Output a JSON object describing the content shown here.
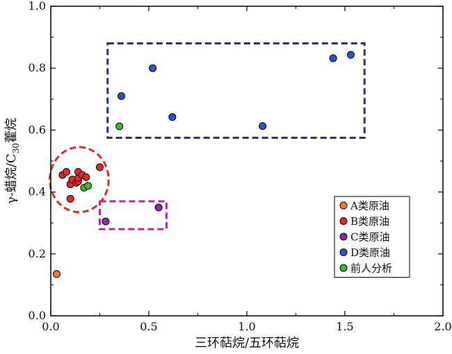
{
  "chart_data": {
    "type": "scatter",
    "xlabel": "三环萜烷/五环萜烷",
    "ylabel_main": "γ-蜡烷/C",
    "ylabel_sub": "30",
    "ylabel_end": "藿烷",
    "xlim": [
      0.0,
      2.0
    ],
    "ylim": [
      0.0,
      1.0
    ],
    "xticks": [
      "0.0",
      "0.5",
      "1.0",
      "1.5",
      "2.0"
    ],
    "yticks": [
      "0.0",
      "0.2",
      "0.4",
      "0.6",
      "0.8",
      "1.0"
    ],
    "legend_position": "lower-right",
    "series": [
      {
        "name": "A类原油",
        "color": "#f07a2a",
        "points": [
          [
            0.03,
            0.135
          ]
        ]
      },
      {
        "name": "B类原油",
        "color": "#e02a2a",
        "points": [
          [
            0.06,
            0.455
          ],
          [
            0.08,
            0.465
          ],
          [
            0.1,
            0.425
          ],
          [
            0.1,
            0.378
          ],
          [
            0.11,
            0.44
          ],
          [
            0.13,
            0.43
          ],
          [
            0.14,
            0.435
          ],
          [
            0.14,
            0.445
          ],
          [
            0.14,
            0.465
          ],
          [
            0.16,
            0.455
          ],
          [
            0.18,
            0.448
          ],
          [
            0.25,
            0.48
          ]
        ]
      },
      {
        "name": "C类原油",
        "color": "#8b2aa8",
        "points": [
          [
            0.28,
            0.305
          ],
          [
            0.55,
            0.35
          ]
        ]
      },
      {
        "name": "D类原油",
        "color": "#2a55c8",
        "points": [
          [
            0.36,
            0.71
          ],
          [
            0.52,
            0.8
          ],
          [
            0.62,
            0.642
          ],
          [
            1.08,
            0.613
          ],
          [
            1.44,
            0.832
          ],
          [
            1.53,
            0.843
          ]
        ]
      },
      {
        "name": "前人分析",
        "color": "#3aba2a",
        "points": [
          [
            0.35,
            0.612
          ],
          [
            0.17,
            0.414
          ],
          [
            0.19,
            0.42
          ]
        ]
      }
    ],
    "annotations": [
      {
        "kind": "rect",
        "color": "#2a2a9a",
        "x": [
          0.29,
          1.6
        ],
        "y": [
          0.575,
          0.88
        ]
      },
      {
        "kind": "rect",
        "color": "#b02aa8",
        "x": [
          0.25,
          0.59
        ],
        "y": [
          0.28,
          0.37
        ]
      },
      {
        "kind": "ellipse",
        "color": "#e02a2a",
        "cx": 0.145,
        "cy": 0.44,
        "rx": 0.15,
        "ry": 0.105
      }
    ]
  }
}
